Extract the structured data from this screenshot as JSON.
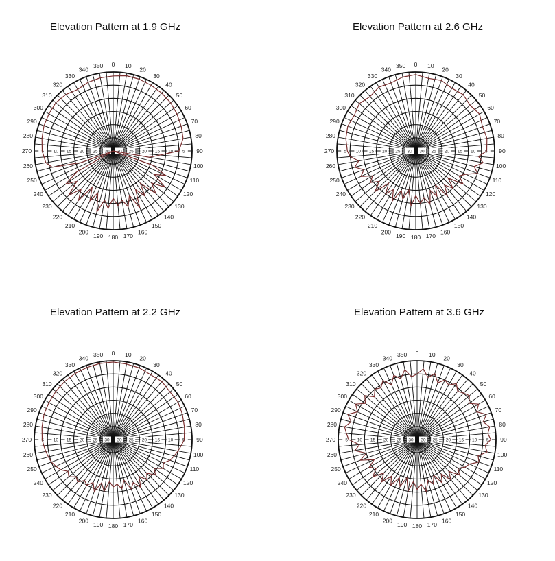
{
  "style": {
    "trace_color": "#7a2e2e",
    "grid_color": "#111111"
  },
  "chart_data": [
    {
      "type": "polar",
      "title": "Elevation Pattern at 1.9 GHz",
      "angle_ticks": [
        0,
        10,
        20,
        30,
        40,
        50,
        60,
        70,
        80,
        90,
        100,
        110,
        120,
        130,
        140,
        150,
        160,
        170,
        180,
        190,
        200,
        210,
        220,
        230,
        240,
        250,
        260,
        270,
        280,
        290,
        300,
        310,
        320,
        330,
        340,
        350
      ],
      "angle_step": 5,
      "r_axis": {
        "min_db": -30,
        "max_db": 0,
        "rings_db": [
          -30,
          -25,
          -20,
          -15,
          -10,
          -5,
          0
        ],
        "labels": [
          "30",
          "25",
          "20",
          "15",
          "10",
          "5"
        ]
      },
      "pattern": {
        "angles": [
          0,
          10,
          20,
          30,
          40,
          50,
          60,
          70,
          80,
          90,
          100,
          105,
          110,
          115,
          120,
          125,
          130,
          135,
          140,
          145,
          150,
          155,
          160,
          165,
          170,
          175,
          180,
          185,
          190,
          195,
          200,
          205,
          210,
          215,
          220,
          225,
          230,
          235,
          240,
          245,
          250,
          255,
          260,
          270,
          280,
          290,
          300,
          310,
          320,
          330,
          340,
          350,
          360
        ],
        "gain_db": [
          -1.5,
          -1,
          -1,
          -1.2,
          -1.3,
          -1.5,
          -2,
          -2.5,
          -3,
          -5,
          -16,
          -30,
          -14,
          -8,
          -12,
          -6,
          -11,
          -7,
          -14,
          -9,
          -13,
          -6,
          -12,
          -8,
          -11,
          -9,
          -12,
          -8,
          -11,
          -6,
          -13,
          -9,
          -14,
          -7,
          -11,
          -6,
          -12,
          -8,
          -14,
          -30,
          -17,
          -6,
          -4,
          -3,
          -2.5,
          -2,
          -1.8,
          -1.5,
          -2,
          -3,
          -2.2,
          -1.8,
          -1.5
        ]
      }
    },
    {
      "type": "polar",
      "title": "Elevation Pattern at 2.6 GHz",
      "angle_ticks": [
        0,
        10,
        20,
        30,
        40,
        50,
        60,
        70,
        80,
        90,
        100,
        110,
        120,
        130,
        140,
        150,
        160,
        170,
        180,
        190,
        200,
        210,
        220,
        230,
        240,
        250,
        260,
        270,
        280,
        290,
        300,
        310,
        320,
        330,
        340,
        350
      ],
      "angle_step": 5,
      "r_axis": {
        "min_db": -30,
        "max_db": 0,
        "rings_db": [
          -30,
          -25,
          -20,
          -15,
          -10,
          -5,
          0
        ],
        "labels": [
          "30",
          "25",
          "20",
          "15",
          "10",
          "5"
        ]
      },
      "pattern": {
        "angles": [
          0,
          10,
          20,
          30,
          40,
          50,
          60,
          70,
          80,
          90,
          95,
          100,
          105,
          110,
          115,
          120,
          125,
          130,
          135,
          140,
          145,
          150,
          155,
          160,
          165,
          170,
          175,
          180,
          185,
          190,
          195,
          200,
          205,
          210,
          215,
          220,
          225,
          230,
          235,
          240,
          245,
          250,
          255,
          260,
          265,
          270,
          280,
          290,
          300,
          310,
          320,
          330,
          340,
          350,
          360
        ],
        "gain_db": [
          -1,
          -2,
          -1.5,
          -2.5,
          -2,
          -3,
          -2,
          -3,
          -2.5,
          -3,
          -6,
          -4,
          -7,
          -5,
          -9,
          -11,
          -8,
          -14,
          -10,
          -13,
          -9,
          -15,
          -11,
          -14,
          -9,
          -12,
          -10,
          -13,
          -9,
          -15,
          -11,
          -14,
          -9,
          -13,
          -10,
          -14,
          -8,
          -12,
          -9,
          -11,
          -7,
          -9,
          -6,
          -8,
          -5,
          -4,
          -3,
          -2.5,
          -3,
          -2,
          -3,
          -2,
          -2.5,
          -1.5,
          -1
        ]
      }
    },
    {
      "type": "polar",
      "title": "Elevation Pattern at 2.2 GHz",
      "angle_ticks": [
        0,
        10,
        20,
        30,
        40,
        50,
        60,
        70,
        80,
        90,
        100,
        110,
        120,
        130,
        140,
        150,
        160,
        170,
        180,
        190,
        200,
        210,
        220,
        230,
        240,
        250,
        260,
        270,
        280,
        290,
        300,
        310,
        320,
        330,
        340,
        350
      ],
      "angle_step": 5,
      "r_axis": {
        "min_db": -30,
        "max_db": 0,
        "rings_db": [
          -30,
          -25,
          -20,
          -15,
          -10,
          -5,
          0
        ],
        "labels": [
          "30",
          "25",
          "20",
          "15",
          "10",
          "5"
        ]
      },
      "pattern": {
        "angles": [
          0,
          10,
          20,
          30,
          40,
          50,
          60,
          70,
          80,
          90,
          95,
          100,
          105,
          110,
          115,
          120,
          125,
          130,
          135,
          140,
          145,
          150,
          155,
          160,
          165,
          170,
          175,
          180,
          185,
          190,
          195,
          200,
          205,
          210,
          215,
          220,
          225,
          230,
          235,
          240,
          245,
          250,
          255,
          260,
          265,
          270,
          280,
          290,
          300,
          310,
          320,
          330,
          340,
          350,
          360
        ],
        "gain_db": [
          -0.5,
          -0.8,
          -1,
          -1.5,
          -1.2,
          -1.8,
          -1.5,
          -2,
          -2.5,
          -3,
          -4,
          -5,
          -6,
          -7,
          -9,
          -8,
          -11,
          -9,
          -12,
          -10,
          -13,
          -9,
          -12,
          -10,
          -14,
          -11,
          -13,
          -12,
          -14,
          -10,
          -13,
          -9,
          -12,
          -10,
          -11,
          -9,
          -10,
          -8,
          -9,
          -7,
          -6,
          -5,
          -4.5,
          -4,
          -3.5,
          -3,
          -2.5,
          -2,
          -1.8,
          -1.5,
          -1.2,
          -1,
          -0.8,
          -0.6,
          -0.5
        ]
      }
    },
    {
      "type": "polar",
      "title": "Elevation Pattern at 3.6 GHz",
      "angle_ticks": [
        0,
        10,
        20,
        30,
        40,
        50,
        60,
        70,
        80,
        90,
        100,
        110,
        120,
        130,
        140,
        150,
        160,
        170,
        180,
        190,
        200,
        210,
        220,
        230,
        240,
        250,
        260,
        270,
        280,
        290,
        300,
        310,
        320,
        330,
        340,
        350
      ],
      "angle_step": 5,
      "r_axis": {
        "min_db": -30,
        "max_db": 0,
        "rings_db": [
          -30,
          -25,
          -20,
          -15,
          -10,
          -5,
          0
        ],
        "labels": [
          "30",
          "25",
          "20",
          "15",
          "10",
          "5"
        ]
      },
      "pattern": {
        "angles": [
          0,
          5,
          10,
          15,
          20,
          25,
          30,
          35,
          40,
          45,
          50,
          55,
          60,
          65,
          70,
          75,
          80,
          85,
          90,
          95,
          100,
          105,
          110,
          115,
          120,
          125,
          130,
          135,
          140,
          145,
          150,
          155,
          160,
          165,
          170,
          175,
          180,
          185,
          190,
          195,
          200,
          205,
          210,
          215,
          220,
          225,
          230,
          235,
          240,
          245,
          250,
          255,
          260,
          265,
          270,
          275,
          280,
          285,
          290,
          295,
          300,
          305,
          310,
          315,
          320,
          325,
          330,
          335,
          340,
          345,
          350,
          355,
          360
        ],
        "gain_db": [
          -5,
          -3,
          -6,
          -4,
          -7,
          -5,
          -6,
          -4,
          -6,
          -5,
          -4,
          -6,
          -3,
          -5,
          -2,
          -4,
          -2,
          -3,
          -2,
          -4,
          -3,
          -6,
          -5,
          -8,
          -9,
          -11,
          -9,
          -13,
          -10,
          -14,
          -11,
          -15,
          -12,
          -14,
          -10,
          -13,
          -11,
          -14,
          -10,
          -15,
          -11,
          -14,
          -10,
          -13,
          -9,
          -12,
          -8,
          -11,
          -9,
          -12,
          -7,
          -10,
          -6,
          -8,
          -4,
          -3,
          -2,
          -4,
          -2,
          -5,
          -3,
          -6,
          -4,
          -7,
          -5,
          -6,
          -4,
          -7,
          -4,
          -6,
          -3,
          -6,
          -5
        ]
      }
    }
  ]
}
